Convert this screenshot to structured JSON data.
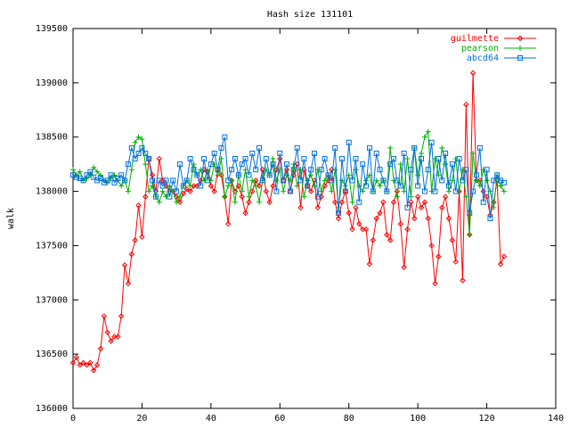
{
  "chart_data": {
    "type": "line",
    "title": "Hash size 131101",
    "ylabel": "walk",
    "x": [
      0,
      1,
      2,
      3,
      4,
      5,
      6,
      7,
      8,
      9,
      10,
      11,
      12,
      13,
      14,
      15,
      16,
      17,
      18,
      19,
      20,
      21,
      22,
      23,
      24,
      25,
      26,
      27,
      28,
      29,
      30,
      31,
      32,
      33,
      34,
      35,
      36,
      37,
      38,
      39,
      40,
      41,
      42,
      43,
      44,
      45,
      46,
      47,
      48,
      49,
      50,
      51,
      52,
      53,
      54,
      55,
      56,
      57,
      58,
      59,
      60,
      61,
      62,
      63,
      64,
      65,
      66,
      67,
      68,
      69,
      70,
      71,
      72,
      73,
      74,
      75,
      76,
      77,
      78,
      79,
      80,
      81,
      82,
      83,
      84,
      85,
      86,
      87,
      88,
      89,
      90,
      91,
      92,
      93,
      94,
      95,
      96,
      97,
      98,
      99,
      100,
      101,
      102,
      103,
      104,
      105,
      106,
      107,
      108,
      109,
      110,
      111,
      112,
      113,
      114,
      115,
      116,
      117,
      118,
      119,
      120,
      121,
      122,
      123,
      124,
      125
    ],
    "series": [
      {
        "name": "guilmette",
        "color": "#ff0000",
        "marker": "diamond",
        "values": [
          136420,
          136470,
          136400,
          136420,
          136400,
          136420,
          136350,
          136400,
          136550,
          136850,
          136700,
          136620,
          136660,
          136660,
          136850,
          137320,
          137150,
          137420,
          137550,
          137870,
          137580,
          137950,
          138300,
          138150,
          138000,
          138300,
          138100,
          138050,
          138000,
          138000,
          137950,
          137900,
          137980,
          138020,
          138000,
          138050,
          138050,
          138100,
          138200,
          138180,
          138050,
          138000,
          138200,
          138150,
          137950,
          137700,
          138100,
          138000,
          138050,
          137950,
          137800,
          137900,
          138000,
          138100,
          138050,
          138200,
          138000,
          137900,
          138050,
          138200,
          138300,
          138100,
          138200,
          138000,
          138150,
          138250,
          137850,
          138200,
          138050,
          138000,
          138100,
          137850,
          137950,
          138050,
          138100,
          138200,
          137900,
          137750,
          137900,
          138000,
          137800,
          137650,
          137850,
          137700,
          137650,
          137650,
          137330,
          137550,
          137750,
          137800,
          137900,
          137600,
          137550,
          137900,
          138000,
          137700,
          137300,
          137650,
          137900,
          137750,
          137950,
          137850,
          137900,
          137750,
          137500,
          137150,
          137400,
          137850,
          137950,
          137750,
          137550,
          137350,
          138000,
          137180,
          138800,
          137600,
          139090,
          138100,
          138100,
          138000,
          137950,
          137780,
          137900,
          138100,
          137330,
          137400
        ]
      },
      {
        "name": "pearson",
        "color": "#00b000",
        "marker": "plus",
        "values": [
          138200,
          138150,
          138180,
          138100,
          138120,
          138150,
          138220,
          138180,
          138150,
          138100,
          138080,
          138120,
          138150,
          138100,
          138050,
          138100,
          138000,
          138200,
          138450,
          138500,
          138480,
          138250,
          138000,
          138050,
          137950,
          137900,
          138000,
          137950,
          138050,
          138000,
          137900,
          137950,
          138050,
          138100,
          138050,
          138250,
          138150,
          138200,
          138100,
          138200,
          138100,
          138250,
          138150,
          138300,
          137950,
          138050,
          138100,
          137900,
          138150,
          138000,
          138200,
          137950,
          138100,
          138050,
          137900,
          138100,
          138200,
          138150,
          138300,
          138100,
          138200,
          138000,
          138150,
          138100,
          138250,
          138050,
          138200,
          137950,
          138100,
          138150,
          138050,
          138200,
          138000,
          138100,
          138150,
          138000,
          138200,
          137850,
          138100,
          138050,
          138150,
          137900,
          138200,
          138050,
          138000,
          138100,
          138150,
          138000,
          138100,
          138050,
          138100,
          138000,
          138400,
          138100,
          137950,
          138250,
          138000,
          138300,
          137950,
          138400,
          138150,
          138350,
          138500,
          138550,
          138000,
          138300,
          138150,
          138400,
          138250,
          138000,
          138100,
          138300,
          138000,
          138200,
          137950,
          137600,
          138350,
          138100,
          138050,
          138200,
          138100,
          138000,
          137850,
          138150,
          138050,
          138000
        ]
      },
      {
        "name": "abcd64",
        "color": "#0070e0",
        "marker": "square",
        "values": [
          138150,
          138130,
          138120,
          138100,
          138150,
          138180,
          138130,
          138100,
          138120,
          138080,
          138100,
          138150,
          138080,
          138120,
          138150,
          138100,
          138250,
          138400,
          138300,
          138350,
          138400,
          138350,
          138300,
          138100,
          137950,
          138100,
          138050,
          138100,
          137950,
          138100,
          138000,
          138250,
          138050,
          138100,
          138300,
          138200,
          138150,
          138050,
          138300,
          138100,
          138250,
          138350,
          138200,
          138400,
          138500,
          138100,
          138200,
          138300,
          138150,
          138250,
          138300,
          138150,
          138350,
          138200,
          138400,
          138100,
          138300,
          138150,
          138250,
          138000,
          138350,
          138100,
          138250,
          138000,
          138200,
          138400,
          138100,
          138300,
          138050,
          138200,
          138350,
          137950,
          138200,
          138300,
          138150,
          138100,
          138400,
          137800,
          138300,
          138000,
          138450,
          138100,
          138300,
          137900,
          138250,
          138050,
          138400,
          138000,
          138350,
          138200,
          138100,
          138000,
          138250,
          138300,
          138100,
          138050,
          138350,
          137850,
          138200,
          138400,
          138050,
          138300,
          138000,
          138200,
          138450,
          138000,
          138300,
          138100,
          138350,
          138050,
          138250,
          138000,
          138300,
          138100,
          138200,
          137800,
          138000,
          138150,
          138400,
          137900,
          138200,
          137750,
          138100,
          138150,
          138100,
          138080
        ]
      }
    ],
    "xlim": [
      0,
      140
    ],
    "xticks": [
      0,
      20,
      40,
      60,
      80,
      100,
      120,
      140
    ],
    "ylim": [
      136000,
      139500
    ],
    "yticks": [
      136000,
      136500,
      137000,
      137500,
      138000,
      138500,
      139000,
      139500
    ],
    "legend": "top-right",
    "grid": false
  }
}
